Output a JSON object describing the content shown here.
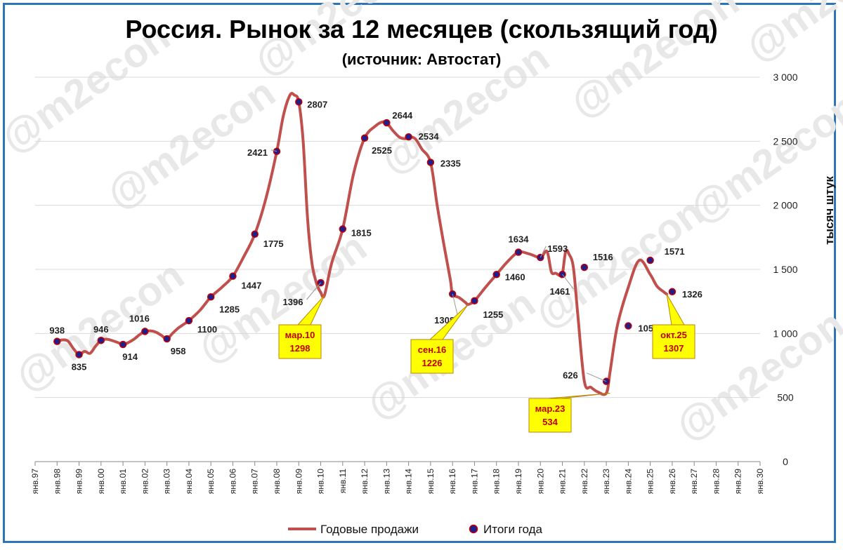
{
  "chart_data": {
    "type": "line",
    "title": "Россия. Рынок за 12 месяцев (скользящий год)",
    "subtitle": "(источник: Автостат)",
    "ylabel": "тысяч штук",
    "ylim": [
      0,
      3000
    ],
    "y_ticks": [
      0,
      500,
      1000,
      1500,
      2000,
      2500,
      3000
    ],
    "y_tick_labels": [
      "0",
      "500",
      "1 000",
      "1 500",
      "2 000",
      "2 500",
      "3 000"
    ],
    "xlim": [
      1997,
      2030
    ],
    "x_tick_labels": [
      "янв.97",
      "янв.98",
      "янв.99",
      "янв.00",
      "янв.01",
      "янв.02",
      "янв.03",
      "янв.04",
      "янв.05",
      "янв.06",
      "янв.07",
      "янв.08",
      "янв.09",
      "янв.10",
      "янв.11",
      "янв.12",
      "янв.13",
      "янв.14",
      "янв.15",
      "янв.16",
      "янв.17",
      "янв.18",
      "янв.19",
      "янв.20",
      "янв.21",
      "янв.22",
      "янв.23",
      "янв.24",
      "янв.25",
      "янв.26",
      "янв.27",
      "янв.28",
      "янв.29",
      "янв.30"
    ],
    "grid": true,
    "legend_position": "bottom",
    "series": [
      {
        "name": "Годовые продажи",
        "color": "#c0504d",
        "x": [
          1998.0,
          1998.25,
          1998.5,
          1998.75,
          1999.0,
          1999.25,
          1999.5,
          1999.75,
          2000.0,
          2000.25,
          2000.5,
          2000.75,
          2001.0,
          2001.25,
          2001.5,
          2001.75,
          2002.0,
          2002.25,
          2002.5,
          2002.75,
          2003.0,
          2003.25,
          2003.5,
          2003.75,
          2004.0,
          2004.5,
          2005.0,
          2005.5,
          2006.0,
          2006.5,
          2007.0,
          2007.5,
          2008.0,
          2008.3,
          2008.6,
          2008.8,
          2009.0,
          2009.2,
          2009.4,
          2009.6,
          2009.8,
          2010.0,
          2010.17,
          2010.5,
          2011.0,
          2011.5,
          2012.0,
          2012.5,
          2012.8,
          2013.0,
          2013.3,
          2013.6,
          2013.9,
          2014.0,
          2014.3,
          2014.6,
          2015.0,
          2015.3,
          2015.6,
          2015.9,
          2016.0,
          2016.3,
          2016.6,
          2016.71,
          2017.0,
          2017.5,
          2018.0,
          2018.5,
          2019.0,
          2019.5,
          2020.0,
          2020.3,
          2020.5,
          2020.7,
          2020.9,
          2021.0,
          2021.15,
          2021.3,
          2021.5,
          2021.7,
          2022.0,
          2022.3,
          2022.6,
          2023.0,
          2023.17,
          2023.5,
          2024.0,
          2024.5,
          2025.0,
          2025.3,
          2025.6,
          2025.75
        ],
        "values": [
          938,
          950,
          940,
          880,
          835,
          860,
          845,
          900,
          946,
          955,
          945,
          930,
          914,
          930,
          955,
          990,
          1016,
          1020,
          1010,
          985,
          958,
          1000,
          1040,
          1070,
          1100,
          1180,
          1285,
          1360,
          1447,
          1600,
          1775,
          2050,
          2421,
          2700,
          2860,
          2860,
          2807,
          2500,
          1900,
          1550,
          1396,
          1320,
          1298,
          1550,
          1815,
          2250,
          2525,
          2620,
          2650,
          2644,
          2580,
          2530,
          2520,
          2534,
          2520,
          2440,
          2335,
          2000,
          1700,
          1420,
          1308,
          1280,
          1240,
          1226,
          1255,
          1360,
          1460,
          1560,
          1634,
          1620,
          1593,
          1640,
          1480,
          1470,
          1450,
          1461,
          1640,
          1620,
          1516,
          1150,
          626,
          580,
          545,
          534,
          700,
          1059,
          1360,
          1571,
          1460,
          1370,
          1326,
          1307
        ]
      },
      {
        "name": "Итоги года",
        "color": "#1f1f8f",
        "x": [
          1998,
          1999,
          2000,
          2001,
          2002,
          2003,
          2004,
          2005,
          2006,
          2007,
          2008,
          2009,
          2010,
          2011,
          2012,
          2013,
          2014,
          2015,
          2016,
          2017,
          2018,
          2019,
          2020,
          2021,
          2022,
          2023,
          2024,
          2025,
          2026
        ],
        "values": [
          938,
          835,
          946,
          914,
          1016,
          958,
          1100,
          1285,
          1447,
          1775,
          2421,
          2807,
          1396,
          1815,
          2525,
          2644,
          2534,
          2335,
          1308,
          1255,
          1460,
          1634,
          1593,
          1461,
          1516,
          626,
          1059,
          1571,
          1326
        ]
      }
    ],
    "annotations": [
      {
        "label_top": "мар.10",
        "label_bottom": "1298",
        "x": 2010.17,
        "value": 1298
      },
      {
        "label_top": "сен.16",
        "label_bottom": "1226",
        "x": 2016.71,
        "value": 1226
      },
      {
        "label_top": "мар.23",
        "label_bottom": "534",
        "x": 2023.17,
        "value": 534
      },
      {
        "label_top": "окт.25",
        "label_bottom": "1307",
        "x": 2025.75,
        "value": 1307
      }
    ]
  },
  "watermark": "@m2econ"
}
